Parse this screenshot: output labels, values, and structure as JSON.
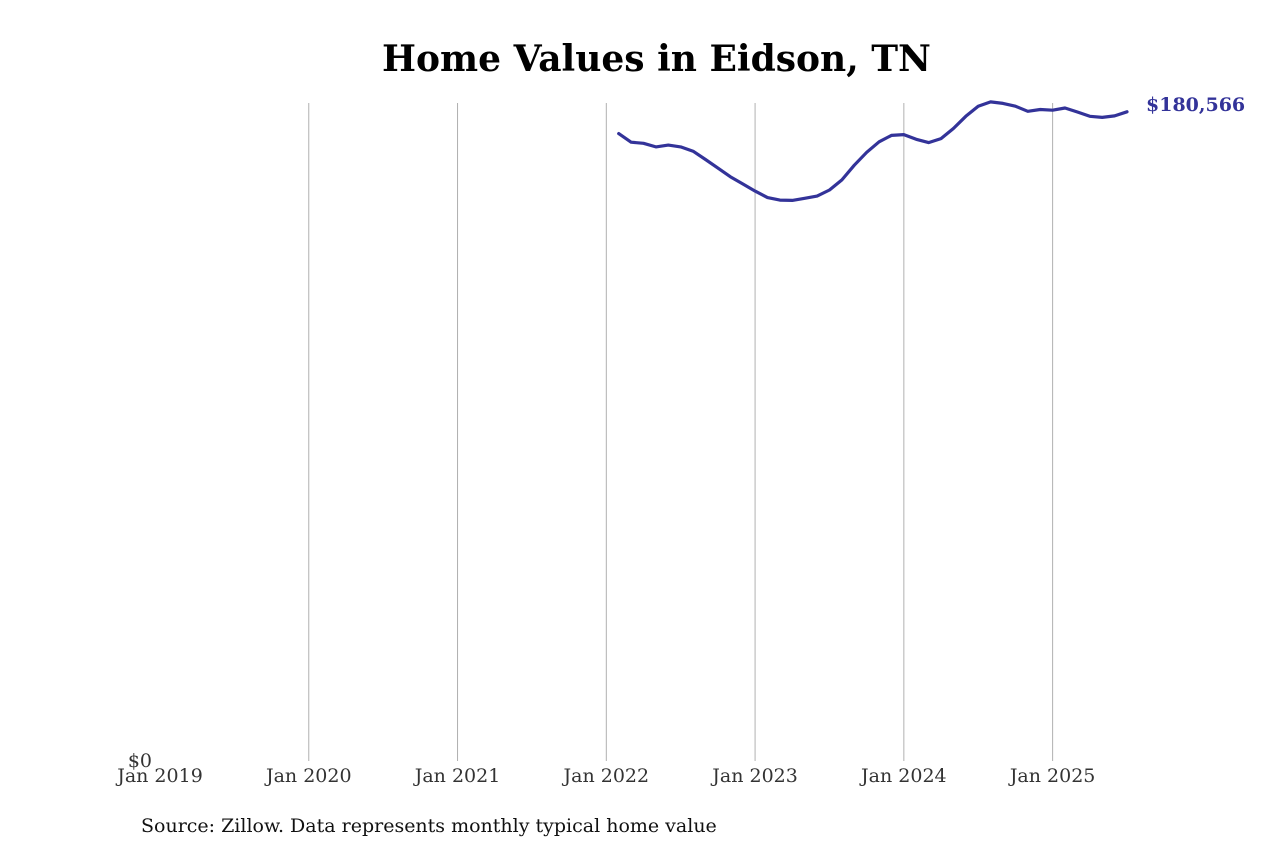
{
  "chart_data": {
    "type": "line",
    "title": "Home Values in Eidson, TN",
    "source_note": "Source: Zillow. Data represents monthly typical home value",
    "x_tick_labels": [
      "Jan 2019",
      "Jan 2020",
      "Jan 2021",
      "Jan 2022",
      "Jan 2023",
      "Jan 2024",
      "Jan 2025"
    ],
    "x_tick_dates": [
      "2019-01",
      "2020-01",
      "2021-01",
      "2022-01",
      "2023-01",
      "2024-01",
      "2025-01"
    ],
    "y_tick_labels": [
      "$0"
    ],
    "y_tick_values": [
      0
    ],
    "ylim": [
      0,
      183000
    ],
    "xlim": [
      "2019-01",
      "2025-07"
    ],
    "grid": "vertical",
    "line_color": "#333399",
    "end_label": "$180,566",
    "series": [
      {
        "x": [
          "2022-02",
          "2022-03",
          "2022-04",
          "2022-05",
          "2022-06",
          "2022-07",
          "2022-08",
          "2022-09",
          "2022-10",
          "2022-11",
          "2022-12",
          "2023-01",
          "2023-02",
          "2023-03",
          "2023-04",
          "2023-05",
          "2023-06",
          "2023-07",
          "2023-08",
          "2023-09",
          "2023-10",
          "2023-11",
          "2023-12",
          "2024-01",
          "2024-02",
          "2024-03",
          "2024-04",
          "2024-05",
          "2024-06",
          "2024-07",
          "2024-08",
          "2024-09",
          "2024-10",
          "2024-11",
          "2024-12",
          "2025-01",
          "2025-02",
          "2025-03",
          "2025-04",
          "2025-05",
          "2025-06",
          "2025-07"
        ],
        "y": [
          174500,
          172100,
          171800,
          170800,
          171300,
          170800,
          169600,
          167300,
          164900,
          162500,
          160500,
          158500,
          156700,
          156000,
          155900,
          156500,
          157100,
          158800,
          161600,
          165700,
          169300,
          172200,
          174000,
          174200,
          172900,
          172000,
          173100,
          175900,
          179300,
          182100,
          183300,
          182900,
          182100,
          180700,
          181200,
          181000,
          181600,
          180500,
          179300,
          179000,
          179400,
          180566
        ]
      }
    ]
  }
}
